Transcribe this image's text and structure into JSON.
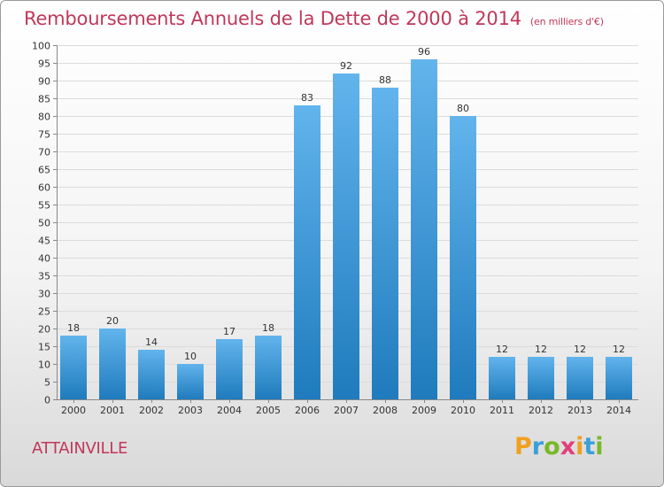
{
  "header": {
    "title": "Remboursements Annuels de la Dette de 2000 à 2014",
    "unit": "(en milliers d'€)"
  },
  "commune": "ATTAINVILLE",
  "brand": {
    "letters": [
      "P",
      "r",
      "o",
      "x",
      "i",
      "t",
      "i"
    ],
    "colors": [
      "#f0a020",
      "#3aa0d8",
      "#78b828",
      "#e0407a",
      "#f0a020",
      "#3aa0d8",
      "#78b828"
    ]
  },
  "colors": {
    "bar_light": "#62b4ec",
    "bar_dark": "#1f7bbd",
    "accent": "#c0385a"
  },
  "chart_data": {
    "type": "bar",
    "categories": [
      "2000",
      "2001",
      "2002",
      "2003",
      "2004",
      "2005",
      "2006",
      "2007",
      "2008",
      "2009",
      "2010",
      "2011",
      "2012",
      "2013",
      "2014"
    ],
    "values": [
      18,
      20,
      14,
      10,
      17,
      18,
      83,
      92,
      88,
      96,
      80,
      12,
      12,
      12,
      12
    ],
    "ylim": [
      0,
      100
    ],
    "ytick_step": 5,
    "grid": "horizontal",
    "data_labels": true
  }
}
